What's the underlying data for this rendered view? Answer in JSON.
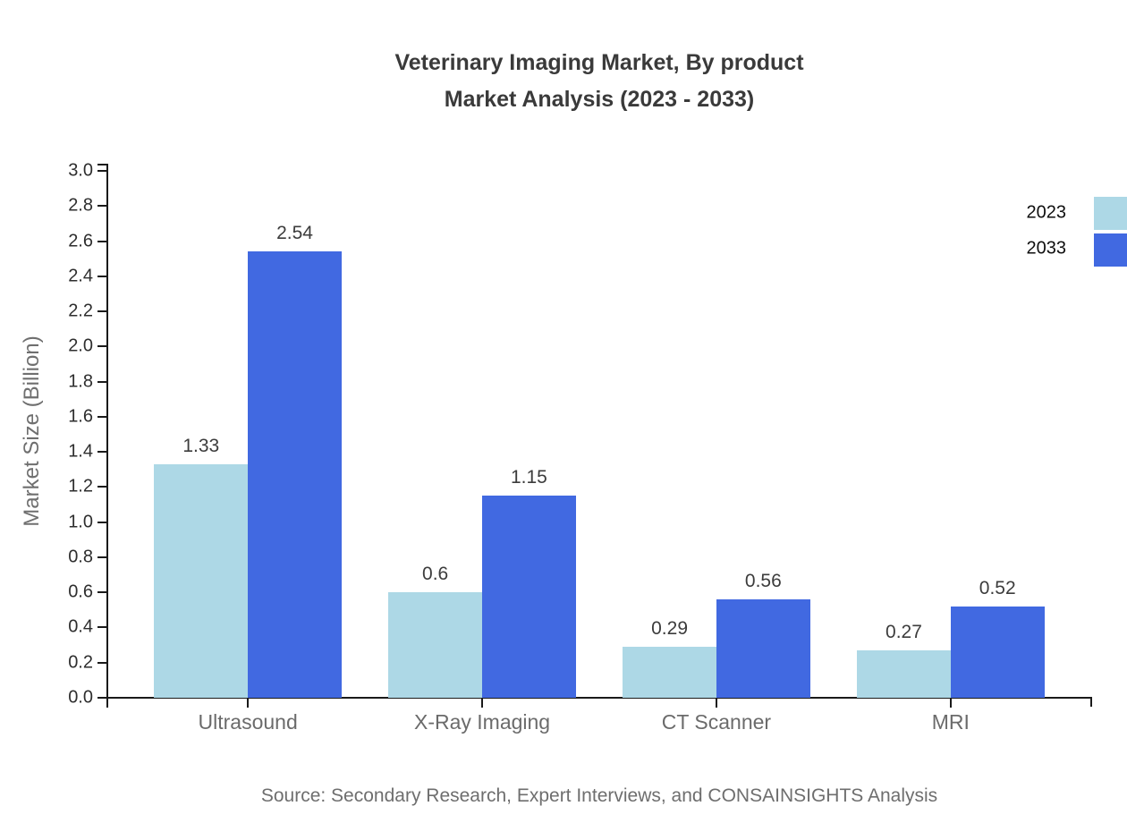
{
  "title": {
    "line1": "Veterinary Imaging Market, By product",
    "line2": "Market Analysis (2023 - 2033)"
  },
  "source": "Source: Secondary Research, Expert Interviews, and CONSAINSIGHTS Analysis",
  "chart_data": {
    "type": "bar",
    "categories": [
      "Ultrasound",
      "X-Ray Imaging",
      "CT Scanner",
      "MRI"
    ],
    "series": [
      {
        "name": "2023",
        "color": "#ADD8E6",
        "values": [
          1.33,
          0.6,
          0.29,
          0.27
        ]
      },
      {
        "name": "2033",
        "color": "#4169E1",
        "values": [
          2.54,
          1.15,
          0.56,
          0.52
        ]
      }
    ],
    "title": "Veterinary Imaging Market, By product Market Analysis (2023 - 2033)",
    "xlabel": "",
    "ylabel": "Market Size (Billion)",
    "ylim": [
      0.0,
      3.0
    ],
    "ytick_step": 0.2,
    "grid": false,
    "legend_position": "top-right",
    "value_labels": true
  }
}
